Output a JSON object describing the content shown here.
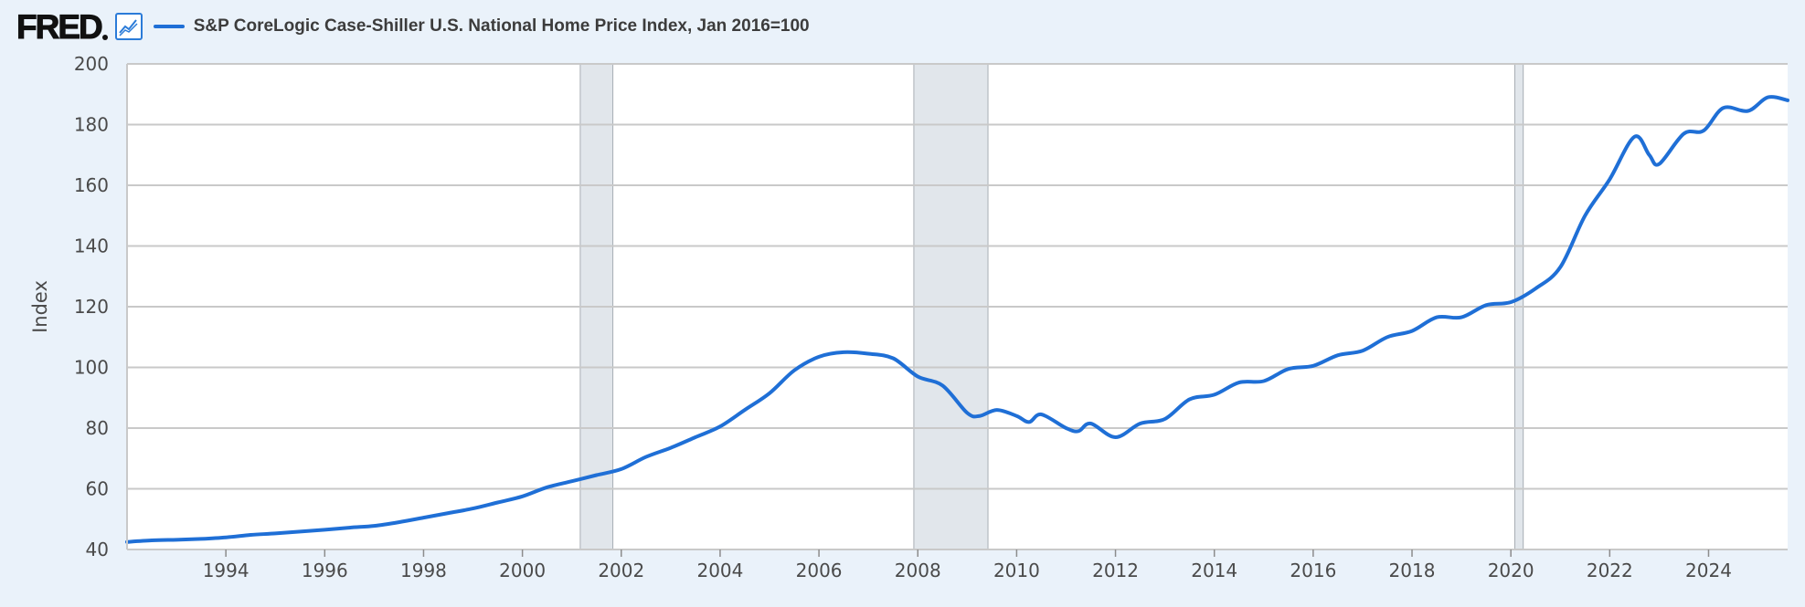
{
  "header": {
    "logo_text": "FRED",
    "legend_label": "S&P CoreLogic Case-Shiller U.S. National Home Price Index, Jan 2016=100",
    "series_color": "#1f6fd6"
  },
  "chart_data": {
    "type": "line",
    "title": "S&P CoreLogic Case-Shiller U.S. National Home Price Index, Jan 2016=100",
    "xlabel": "",
    "ylabel": "Index",
    "xlim": [
      1992.0,
      2025.6
    ],
    "ylim": [
      40,
      200
    ],
    "y_ticks": [
      40,
      60,
      80,
      100,
      120,
      140,
      160,
      180,
      200
    ],
    "x_ticks": [
      1994,
      1996,
      1998,
      2000,
      2002,
      2004,
      2006,
      2008,
      2010,
      2012,
      2014,
      2016,
      2018,
      2020,
      2022,
      2024
    ],
    "grid": true,
    "recessions": [
      [
        2001.17,
        2001.83
      ],
      [
        2007.92,
        2009.42
      ],
      [
        2020.08,
        2020.25
      ]
    ],
    "series": [
      {
        "name": "S&P CoreLogic Case-Shiller U.S. National Home Price Index, Jan 2016=100",
        "x": [
          1992.0,
          1992.5,
          1993.0,
          1993.5,
          1994.0,
          1994.5,
          1995.0,
          1995.5,
          1996.0,
          1996.5,
          1997.0,
          1997.5,
          1998.0,
          1998.5,
          1999.0,
          1999.5,
          2000.0,
          2000.5,
          2001.0,
          2001.5,
          2002.0,
          2002.5,
          2003.0,
          2003.5,
          2004.0,
          2004.5,
          2005.0,
          2005.5,
          2006.0,
          2006.5,
          2007.0,
          2007.5,
          2008.0,
          2008.5,
          2009.0,
          2009.25,
          2009.6,
          2010.0,
          2010.25,
          2010.5,
          2011.0,
          2011.25,
          2011.5,
          2012.0,
          2012.5,
          2013.0,
          2013.5,
          2014.0,
          2014.5,
          2015.0,
          2015.5,
          2016.0,
          2016.5,
          2017.0,
          2017.5,
          2018.0,
          2018.5,
          2019.0,
          2019.5,
          2020.0,
          2020.5,
          2021.0,
          2021.5,
          2022.0,
          2022.5,
          2022.8,
          2023.0,
          2023.5,
          2023.9,
          2024.3,
          2024.8,
          2025.2,
          2025.6
        ],
        "values": [
          42.5,
          43.0,
          43.2,
          43.5,
          44.0,
          44.8,
          45.3,
          45.9,
          46.5,
          47.2,
          47.8,
          49.0,
          50.5,
          52.0,
          53.5,
          55.5,
          57.5,
          60.5,
          62.5,
          64.5,
          66.5,
          70.5,
          73.5,
          77.0,
          80.5,
          86.0,
          91.5,
          99.0,
          103.5,
          105.0,
          104.5,
          103.0,
          97.0,
          94.0,
          85.0,
          84.0,
          86.0,
          84.0,
          82.0,
          84.5,
          80.0,
          79.0,
          81.5,
          77.0,
          81.5,
          83.0,
          89.5,
          91.0,
          95.0,
          95.5,
          99.5,
          100.5,
          104.0,
          105.5,
          110.0,
          112.0,
          116.5,
          116.5,
          120.5,
          121.5,
          126.0,
          133.0,
          150.0,
          162.0,
          176.0,
          170.0,
          167.0,
          177.0,
          178.0,
          185.5,
          184.5,
          189.0,
          188.0
        ]
      }
    ]
  }
}
